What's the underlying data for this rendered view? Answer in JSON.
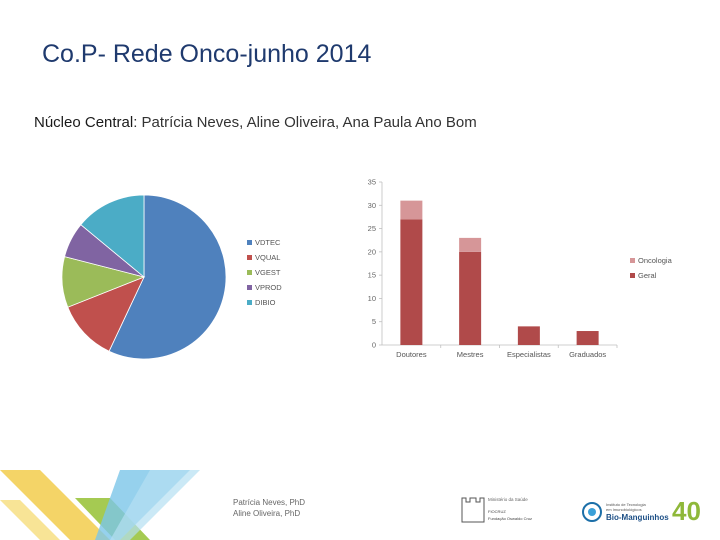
{
  "slide": {
    "title": "Co.P- Rede Onco-junho 2014",
    "subtitle_lead": "Núcleo Central",
    "subtitle_rest": ": Patrícia Neves, Aline Oliveira, Ana Paula Ano Bom"
  },
  "footer": {
    "name_1": "Patrícia Neves, PhD",
    "name_2": "Aline Oliveira, PhD",
    "logo_ministerio_line1": "Ministério da Saúde",
    "logo_ministerio_line2": "FIOCRUZ",
    "logo_ministerio_line3": "Fundação Oswaldo Cruz",
    "logo_bio_line1": "Instituto de Tecnologia",
    "logo_bio_line2": "em Imunobiológicos",
    "logo_bio_name": "Bio-Manguinhos",
    "logo_40": "40"
  },
  "chart_data": [
    {
      "type": "pie",
      "title": "",
      "labels": [
        "VDTEC",
        "VQUAL",
        "VGEST",
        "VPROD",
        "DIBIO"
      ],
      "values": [
        57,
        12,
        10,
        7,
        14
      ],
      "colors": [
        "#4f81bd",
        "#c0504d",
        "#9bbb59",
        "#8064a2",
        "#4bacc6"
      ],
      "legend": "right"
    },
    {
      "type": "bar",
      "stacked": true,
      "title": "",
      "categories": [
        "Doutores",
        "Mestres",
        "Especialistas",
        "Graduados"
      ],
      "series": [
        {
          "name": "Geral",
          "values": [
            27,
            20,
            4,
            3
          ],
          "color": "#b04a4a"
        },
        {
          "name": "Oncologia",
          "values": [
            4,
            3,
            0,
            0
          ],
          "color": "#d69698"
        }
      ],
      "yticks": [
        0,
        5,
        10,
        15,
        20,
        25,
        30,
        35
      ],
      "ylim": [
        0,
        35
      ],
      "legend": "right",
      "legend_order": [
        "Oncologia",
        "Geral"
      ]
    }
  ]
}
